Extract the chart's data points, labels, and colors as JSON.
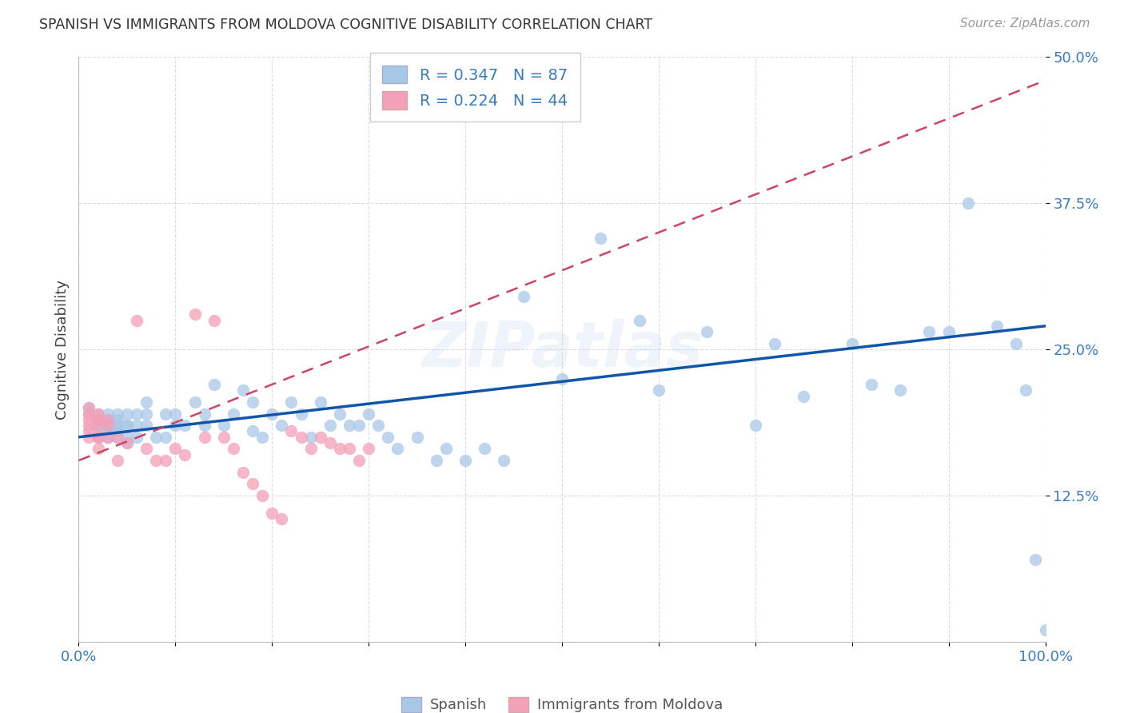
{
  "title": "SPANISH VS IMMIGRANTS FROM MOLDOVA COGNITIVE DISABILITY CORRELATION CHART",
  "source": "Source: ZipAtlas.com",
  "ylabel": "Cognitive Disability",
  "xlim": [
    0,
    1.0
  ],
  "ylim": [
    0,
    0.5
  ],
  "yticks": [
    0.125,
    0.25,
    0.375,
    0.5
  ],
  "ytick_labels": [
    "12.5%",
    "25.0%",
    "37.5%",
    "50.0%"
  ],
  "xticks": [
    0.0,
    0.1,
    0.2,
    0.3,
    0.4,
    0.5,
    0.6,
    0.7,
    0.8,
    0.9,
    1.0
  ],
  "xtick_labels": [
    "0.0%",
    "",
    "",
    "",
    "",
    "",
    "",
    "",
    "",
    "",
    "100.0%"
  ],
  "r_spanish": 0.347,
  "n_spanish": 87,
  "r_moldova": 0.224,
  "n_moldova": 44,
  "color_spanish": "#a8c8e8",
  "color_moldova": "#f4a0b8",
  "trendline_spanish_color": "#1155aa",
  "trendline_moldova_color": "#cc4466",
  "trendline_moldova_dash": [
    6,
    4
  ],
  "watermark": "ZIPatlas",
  "legend_spanish": "Spanish",
  "legend_moldova": "Immigrants from Moldova",
  "spanish_x": [
    0.01,
    0.01,
    0.02,
    0.02,
    0.02,
    0.02,
    0.02,
    0.03,
    0.03,
    0.03,
    0.03,
    0.03,
    0.03,
    0.03,
    0.04,
    0.04,
    0.04,
    0.04,
    0.04,
    0.04,
    0.05,
    0.05,
    0.05,
    0.05,
    0.05,
    0.06,
    0.06,
    0.06,
    0.07,
    0.07,
    0.07,
    0.08,
    0.09,
    0.09,
    0.1,
    0.1,
    0.11,
    0.12,
    0.13,
    0.13,
    0.14,
    0.15,
    0.16,
    0.17,
    0.18,
    0.18,
    0.19,
    0.2,
    0.21,
    0.22,
    0.23,
    0.24,
    0.25,
    0.26,
    0.27,
    0.28,
    0.29,
    0.3,
    0.31,
    0.32,
    0.33,
    0.35,
    0.37,
    0.38,
    0.4,
    0.42,
    0.44,
    0.46,
    0.5,
    0.54,
    0.58,
    0.6,
    0.65,
    0.7,
    0.72,
    0.75,
    0.8,
    0.82,
    0.85,
    0.88,
    0.9,
    0.92,
    0.95,
    0.97,
    0.98,
    0.99,
    1.0
  ],
  "spanish_y": [
    0.195,
    0.2,
    0.18,
    0.19,
    0.185,
    0.175,
    0.195,
    0.18,
    0.19,
    0.185,
    0.175,
    0.195,
    0.185,
    0.175,
    0.185,
    0.19,
    0.175,
    0.185,
    0.195,
    0.18,
    0.175,
    0.185,
    0.195,
    0.17,
    0.185,
    0.185,
    0.195,
    0.175,
    0.185,
    0.195,
    0.205,
    0.175,
    0.195,
    0.175,
    0.185,
    0.195,
    0.185,
    0.205,
    0.185,
    0.195,
    0.22,
    0.185,
    0.195,
    0.215,
    0.205,
    0.18,
    0.175,
    0.195,
    0.185,
    0.205,
    0.195,
    0.175,
    0.205,
    0.185,
    0.195,
    0.185,
    0.185,
    0.195,
    0.185,
    0.175,
    0.165,
    0.175,
    0.155,
    0.165,
    0.155,
    0.165,
    0.155,
    0.295,
    0.225,
    0.345,
    0.275,
    0.215,
    0.265,
    0.185,
    0.255,
    0.21,
    0.255,
    0.22,
    0.215,
    0.265,
    0.265,
    0.375,
    0.27,
    0.255,
    0.215,
    0.07,
    0.01
  ],
  "moldova_x": [
    0.01,
    0.01,
    0.01,
    0.01,
    0.01,
    0.01,
    0.02,
    0.02,
    0.02,
    0.02,
    0.02,
    0.02,
    0.02,
    0.03,
    0.03,
    0.03,
    0.04,
    0.04,
    0.05,
    0.06,
    0.07,
    0.08,
    0.09,
    0.1,
    0.11,
    0.12,
    0.13,
    0.14,
    0.15,
    0.16,
    0.17,
    0.18,
    0.19,
    0.2,
    0.21,
    0.22,
    0.23,
    0.24,
    0.25,
    0.26,
    0.27,
    0.28,
    0.29,
    0.3
  ],
  "moldova_y": [
    0.19,
    0.185,
    0.18,
    0.175,
    0.2,
    0.195,
    0.19,
    0.185,
    0.175,
    0.195,
    0.165,
    0.175,
    0.19,
    0.175,
    0.185,
    0.19,
    0.155,
    0.175,
    0.17,
    0.275,
    0.165,
    0.155,
    0.155,
    0.165,
    0.16,
    0.28,
    0.175,
    0.275,
    0.175,
    0.165,
    0.145,
    0.135,
    0.125,
    0.11,
    0.105,
    0.18,
    0.175,
    0.165,
    0.175,
    0.17,
    0.165,
    0.165,
    0.155,
    0.165
  ]
}
